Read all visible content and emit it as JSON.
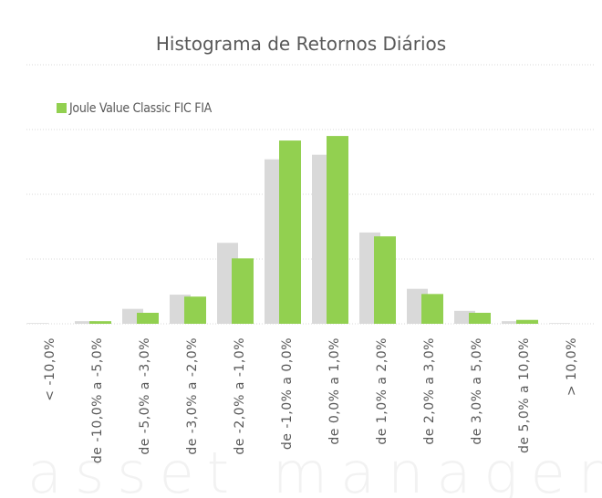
{
  "chart_data": {
    "type": "bar",
    "title": "Histograma de Retornos Diários",
    "watermark": "asset managem",
    "categories": [
      "< -10,0%",
      "de -10,0% a -5,0%",
      "de -5,0% a -3,0%",
      "de -3,0% a -2,0%",
      "de -2,0% a -1,0%",
      "de -1,0% a 0,0%",
      "de 0,0% a 1,0%",
      "de 1,0% a 2,0%",
      "de 2,0% a 3,0%",
      "de 3,0% a 5,0%",
      "de 5,0% a 10,0%",
      "> 10,0%"
    ],
    "series": [
      {
        "color": "#d9d9d9",
        "values": [
          0.01,
          0.04,
          0.23,
          0.45,
          1.25,
          2.54,
          2.61,
          1.41,
          0.54,
          0.2,
          0.04,
          0.01
        ]
      },
      {
        "name": "Joule Value Classic FIC FIA",
        "color": "#92d050",
        "values": [
          0,
          0.04,
          0.17,
          0.42,
          1.01,
          2.83,
          2.9,
          1.35,
          0.46,
          0.17,
          0.06,
          0
        ]
      }
    ],
    "ylim": [
      0,
      4
    ],
    "yticks": [
      0,
      1,
      2,
      3,
      4
    ],
    "grid": true
  }
}
